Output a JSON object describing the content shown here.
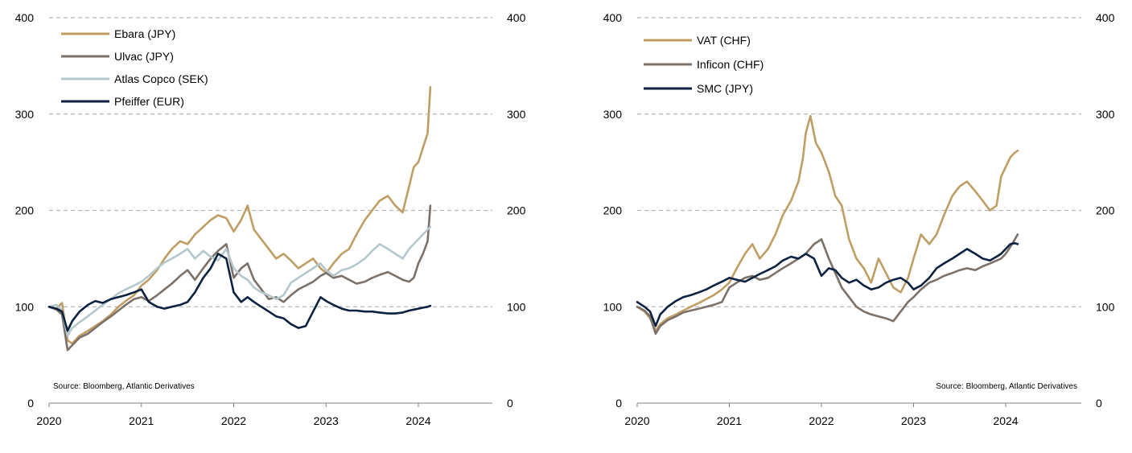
{
  "chart_data": [
    {
      "type": "line",
      "title": "",
      "xlabel": "",
      "ylabel": "",
      "xlim": [
        2020.0,
        2024.85
      ],
      "ylim": [
        0,
        400
      ],
      "x_ticks": [
        "2020",
        "2021",
        "2022",
        "2023",
        "2024"
      ],
      "y_ticks_left": [
        "0",
        "100",
        "200",
        "300",
        "400"
      ],
      "y_ticks_right": [
        "0",
        "100",
        "200",
        "300",
        "400"
      ],
      "grid": "horizontal dashed",
      "legend_position": "top-left",
      "source": "Source: Bloomberg, Atlantic Derivatives",
      "series": [
        {
          "name": "Ebara (JPY)",
          "color": "#bf9e64",
          "x": [
            2020.0,
            2020.08,
            2020.14,
            2020.2,
            2020.25,
            2020.33,
            2020.42,
            2020.5,
            2020.58,
            2020.67,
            2020.75,
            2020.83,
            2020.92,
            2021.0,
            2021.08,
            2021.17,
            2021.25,
            2021.33,
            2021.42,
            2021.5,
            2021.58,
            2021.67,
            2021.75,
            2021.83,
            2021.92,
            2022.0,
            2022.08,
            2022.15,
            2022.22,
            2022.3,
            2022.38,
            2022.46,
            2022.54,
            2022.62,
            2022.7,
            2022.78,
            2022.86,
            2022.94,
            2023.0,
            2023.08,
            2023.17,
            2023.25,
            2023.33,
            2023.42,
            2023.5,
            2023.58,
            2023.67,
            2023.75,
            2023.83,
            2023.9,
            2023.95,
            2024.0,
            2024.05,
            2024.1,
            2024.13
          ],
          "values": [
            100,
            98,
            104,
            65,
            62,
            70,
            75,
            80,
            85,
            92,
            100,
            106,
            112,
            122,
            128,
            138,
            150,
            160,
            168,
            165,
            175,
            183,
            190,
            195,
            192,
            178,
            190,
            205,
            180,
            170,
            160,
            150,
            155,
            148,
            140,
            145,
            150,
            140,
            135,
            145,
            155,
            160,
            175,
            190,
            200,
            210,
            215,
            205,
            198,
            225,
            245,
            250,
            265,
            280,
            328
          ]
        },
        {
          "name": "Ulvac (JPY)",
          "color": "#7b7169",
          "x": [
            2020.0,
            2020.08,
            2020.14,
            2020.2,
            2020.25,
            2020.33,
            2020.42,
            2020.5,
            2020.58,
            2020.67,
            2020.75,
            2020.83,
            2020.92,
            2021.0,
            2021.08,
            2021.17,
            2021.25,
            2021.33,
            2021.42,
            2021.5,
            2021.58,
            2021.67,
            2021.75,
            2021.83,
            2021.92,
            2022.0,
            2022.08,
            2022.15,
            2022.22,
            2022.3,
            2022.38,
            2022.46,
            2022.54,
            2022.62,
            2022.7,
            2022.78,
            2022.86,
            2022.94,
            2023.0,
            2023.08,
            2023.17,
            2023.25,
            2023.33,
            2023.42,
            2023.5,
            2023.58,
            2023.67,
            2023.75,
            2023.83,
            2023.9,
            2023.95,
            2024.0,
            2024.05,
            2024.1,
            2024.13
          ],
          "values": [
            100,
            97,
            92,
            55,
            60,
            68,
            72,
            78,
            84,
            90,
            96,
            102,
            108,
            110,
            106,
            112,
            118,
            124,
            132,
            138,
            128,
            140,
            150,
            158,
            165,
            130,
            140,
            145,
            128,
            118,
            108,
            110,
            105,
            112,
            118,
            122,
            126,
            132,
            135,
            130,
            132,
            128,
            124,
            126,
            130,
            133,
            136,
            132,
            128,
            126,
            130,
            145,
            155,
            168,
            205
          ]
        },
        {
          "name": "Atlas Copco (SEK)",
          "color": "#b4c8cc",
          "x": [
            2020.0,
            2020.08,
            2020.14,
            2020.2,
            2020.25,
            2020.33,
            2020.42,
            2020.5,
            2020.58,
            2020.67,
            2020.75,
            2020.83,
            2020.92,
            2021.0,
            2021.08,
            2021.17,
            2021.25,
            2021.33,
            2021.42,
            2021.5,
            2021.58,
            2021.67,
            2021.75,
            2021.83,
            2021.92,
            2022.0,
            2022.08,
            2022.15,
            2022.22,
            2022.3,
            2022.38,
            2022.46,
            2022.54,
            2022.62,
            2022.7,
            2022.78,
            2022.86,
            2022.94,
            2023.0,
            2023.08,
            2023.17,
            2023.25,
            2023.33,
            2023.42,
            2023.5,
            2023.58,
            2023.67,
            2023.75,
            2023.83,
            2023.9,
            2023.95,
            2024.0,
            2024.05,
            2024.1,
            2024.13
          ],
          "values": [
            100,
            102,
            96,
            70,
            78,
            84,
            90,
            96,
            102,
            108,
            114,
            118,
            122,
            126,
            132,
            140,
            146,
            150,
            155,
            160,
            150,
            158,
            152,
            148,
            160,
            140,
            132,
            128,
            120,
            115,
            112,
            108,
            112,
            125,
            130,
            135,
            140,
            145,
            138,
            132,
            138,
            140,
            144,
            150,
            158,
            165,
            160,
            155,
            150,
            160,
            165,
            170,
            175,
            180,
            183
          ]
        },
        {
          "name": "Pfeiffer (EUR)",
          "color": "#0d2240",
          "x": [
            2020.0,
            2020.08,
            2020.14,
            2020.2,
            2020.25,
            2020.33,
            2020.42,
            2020.5,
            2020.58,
            2020.67,
            2020.75,
            2020.83,
            2020.92,
            2021.0,
            2021.08,
            2021.17,
            2021.25,
            2021.33,
            2021.42,
            2021.5,
            2021.58,
            2021.67,
            2021.75,
            2021.83,
            2021.92,
            2022.0,
            2022.08,
            2022.15,
            2022.22,
            2022.3,
            2022.38,
            2022.46,
            2022.54,
            2022.62,
            2022.7,
            2022.78,
            2022.86,
            2022.94,
            2023.0,
            2023.08,
            2023.17,
            2023.25,
            2023.33,
            2023.42,
            2023.5,
            2023.58,
            2023.67,
            2023.75,
            2023.83,
            2023.9,
            2023.95,
            2024.0,
            2024.05,
            2024.1,
            2024.13
          ],
          "values": [
            100,
            98,
            95,
            75,
            85,
            95,
            102,
            106,
            104,
            108,
            110,
            112,
            115,
            118,
            105,
            100,
            98,
            100,
            102,
            105,
            115,
            130,
            140,
            155,
            150,
            115,
            105,
            110,
            105,
            100,
            95,
            90,
            88,
            82,
            78,
            80,
            95,
            110,
            106,
            102,
            98,
            96,
            96,
            95,
            95,
            94,
            93,
            93,
            94,
            96,
            97,
            98,
            99,
            100,
            101
          ]
        }
      ]
    },
    {
      "type": "line",
      "title": "",
      "xlabel": "",
      "ylabel": "",
      "xlim": [
        2020.0,
        2024.85
      ],
      "ylim": [
        0,
        400
      ],
      "x_ticks": [
        "2020",
        "2021",
        "2022",
        "2023",
        "2024"
      ],
      "y_ticks_left": [
        "0",
        "100",
        "200",
        "300",
        "400"
      ],
      "y_ticks_right": [
        "0",
        "100",
        "200",
        "300",
        "400"
      ],
      "grid": "horizontal dashed",
      "legend_position": "top-left",
      "source": "Source: Bloomberg, Atlantic Derivatives",
      "series": [
        {
          "name": "VAT (CHF)",
          "color": "#bf9e64",
          "x": [
            2020.0,
            2020.08,
            2020.14,
            2020.2,
            2020.25,
            2020.33,
            2020.42,
            2020.5,
            2020.58,
            2020.67,
            2020.75,
            2020.83,
            2020.92,
            2021.0,
            2021.08,
            2021.17,
            2021.25,
            2021.33,
            2021.42,
            2021.5,
            2021.58,
            2021.67,
            2021.75,
            2021.8,
            2021.83,
            2021.88,
            2021.94,
            2022.0,
            2022.08,
            2022.15,
            2022.22,
            2022.3,
            2022.38,
            2022.46,
            2022.54,
            2022.62,
            2022.7,
            2022.78,
            2022.86,
            2022.94,
            2023.0,
            2023.08,
            2023.17,
            2023.25,
            2023.33,
            2023.42,
            2023.5,
            2023.58,
            2023.67,
            2023.75,
            2023.83,
            2023.9,
            2023.95,
            2024.0,
            2024.05,
            2024.1,
            2024.13
          ],
          "values": [
            100,
            95,
            88,
            75,
            82,
            88,
            92,
            96,
            100,
            104,
            108,
            112,
            118,
            125,
            140,
            155,
            165,
            150,
            160,
            175,
            195,
            210,
            230,
            255,
            280,
            298,
            270,
            260,
            240,
            215,
            205,
            170,
            150,
            140,
            125,
            150,
            135,
            120,
            115,
            130,
            150,
            175,
            165,
            175,
            195,
            215,
            225,
            230,
            220,
            210,
            200,
            205,
            235,
            245,
            255,
            260,
            262
          ]
        },
        {
          "name": "Inficon (CHF)",
          "color": "#7b7169",
          "x": [
            2020.0,
            2020.08,
            2020.14,
            2020.2,
            2020.25,
            2020.33,
            2020.42,
            2020.5,
            2020.58,
            2020.67,
            2020.75,
            2020.83,
            2020.92,
            2021.0,
            2021.08,
            2021.17,
            2021.25,
            2021.33,
            2021.42,
            2021.5,
            2021.58,
            2021.67,
            2021.75,
            2021.83,
            2021.92,
            2022.0,
            2022.08,
            2022.15,
            2022.22,
            2022.3,
            2022.38,
            2022.46,
            2022.54,
            2022.62,
            2022.7,
            2022.78,
            2022.86,
            2022.94,
            2023.0,
            2023.08,
            2023.17,
            2023.25,
            2023.33,
            2023.42,
            2023.5,
            2023.58,
            2023.67,
            2023.75,
            2023.83,
            2023.9,
            2023.95,
            2024.0,
            2024.05,
            2024.1,
            2024.13
          ],
          "values": [
            100,
            96,
            90,
            72,
            80,
            86,
            90,
            94,
            96,
            98,
            100,
            102,
            105,
            120,
            125,
            130,
            132,
            128,
            130,
            135,
            140,
            145,
            150,
            155,
            165,
            170,
            150,
            135,
            120,
            110,
            100,
            95,
            92,
            90,
            88,
            85,
            95,
            105,
            110,
            118,
            125,
            128,
            132,
            135,
            138,
            140,
            138,
            142,
            145,
            148,
            150,
            155,
            162,
            170,
            175
          ]
        },
        {
          "name": "SMC (JPY)",
          "color": "#0d2240",
          "x": [
            2020.0,
            2020.08,
            2020.14,
            2020.2,
            2020.25,
            2020.33,
            2020.42,
            2020.5,
            2020.58,
            2020.67,
            2020.75,
            2020.83,
            2020.92,
            2021.0,
            2021.08,
            2021.17,
            2021.25,
            2021.33,
            2021.42,
            2021.5,
            2021.58,
            2021.67,
            2021.75,
            2021.83,
            2021.92,
            2022.0,
            2022.08,
            2022.15,
            2022.22,
            2022.3,
            2022.38,
            2022.46,
            2022.54,
            2022.62,
            2022.7,
            2022.78,
            2022.86,
            2022.94,
            2023.0,
            2023.08,
            2023.17,
            2023.25,
            2023.33,
            2023.42,
            2023.5,
            2023.58,
            2023.67,
            2023.75,
            2023.83,
            2023.9,
            2023.95,
            2024.0,
            2024.05,
            2024.1,
            2024.13
          ],
          "values": [
            105,
            100,
            95,
            80,
            92,
            100,
            106,
            110,
            112,
            115,
            118,
            122,
            126,
            130,
            128,
            126,
            130,
            134,
            138,
            142,
            148,
            152,
            150,
            155,
            150,
            132,
            140,
            138,
            130,
            125,
            128,
            122,
            118,
            120,
            125,
            128,
            130,
            125,
            118,
            122,
            130,
            140,
            145,
            150,
            155,
            160,
            155,
            150,
            148,
            152,
            155,
            160,
            165,
            166,
            165
          ]
        }
      ]
    }
  ]
}
